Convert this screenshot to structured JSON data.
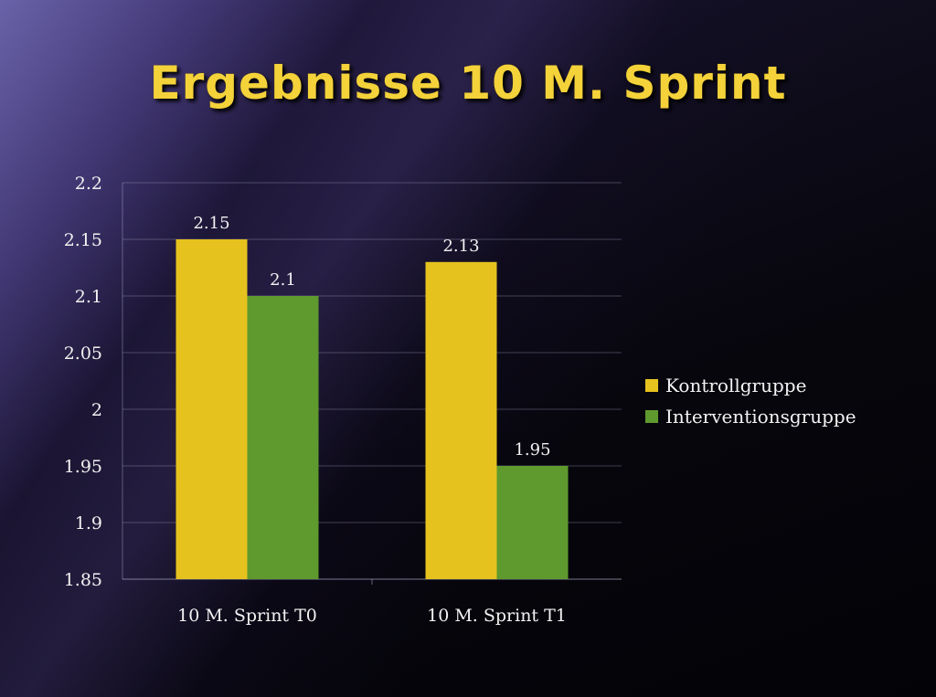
{
  "slide": {
    "title": "Ergebnisse 10 M. Sprint"
  },
  "colors": {
    "title": "#f4d23a",
    "kontrollgruppe": "#e6c21e",
    "interventionsgruppe": "#5f9a2e"
  },
  "chart_data": {
    "type": "bar",
    "categories": [
      "10 M. Sprint T0",
      "10 M. Sprint T1"
    ],
    "series": [
      {
        "name": "Kontrollgruppe",
        "values": [
          2.15,
          2.13
        ],
        "color": "#e6c21e"
      },
      {
        "name": "Interventionsgruppe",
        "values": [
          2.1,
          1.95
        ],
        "color": "#5f9a2e"
      }
    ],
    "ylim": [
      1.85,
      2.2
    ],
    "yticks": [
      "1.85",
      "1.9",
      "1.95",
      "2",
      "2.05",
      "2.1",
      "2.15",
      "2.2"
    ],
    "data_labels": [
      [
        "2.15",
        "2.13"
      ],
      [
        "2.1",
        "1.95"
      ]
    ],
    "grid": true,
    "legend_position": "right"
  }
}
